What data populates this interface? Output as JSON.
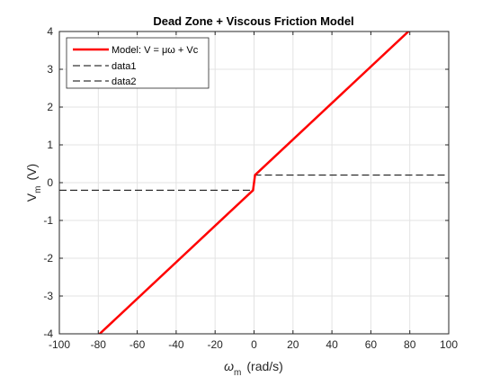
{
  "chart_data": {
    "type": "line",
    "title": "Dead Zone + Viscous Friction Model",
    "xlabel": {
      "symbol": "ω",
      "subscript": "m",
      "unit": "(rad/s)"
    },
    "ylabel": {
      "symbol": "V",
      "subscript": "m",
      "unit": "(V)"
    },
    "xlim": [
      -100,
      100
    ],
    "ylim": [
      -4,
      4
    ],
    "xticks": [
      -100,
      -80,
      -60,
      -40,
      -20,
      0,
      20,
      40,
      60,
      80,
      100
    ],
    "yticks": [
      -4,
      -3,
      -2,
      -1,
      0,
      1,
      2,
      3,
      4
    ],
    "grid": true,
    "legend_position": "top-left",
    "series": [
      {
        "name": "Model: V = μω + Vc",
        "color": "#ff0000",
        "style": "solid",
        "x": [
          -100,
          -0.5,
          0.5,
          100
        ],
        "y": [
          -5,
          -0.2,
          0.2,
          5
        ]
      },
      {
        "name": "data1",
        "color": "#000000",
        "style": "dashed",
        "x": [
          0,
          100
        ],
        "y": [
          0.2,
          0.2
        ]
      },
      {
        "name": "data2",
        "color": "#000000",
        "style": "dashed",
        "x": [
          -100,
          0
        ],
        "y": [
          -0.2,
          -0.2
        ]
      }
    ]
  }
}
